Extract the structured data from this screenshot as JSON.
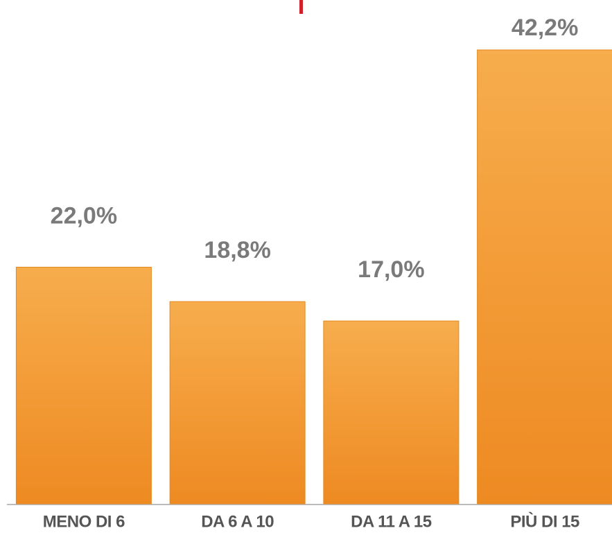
{
  "chart_data": {
    "type": "bar",
    "categories": [
      "MENO DI 6",
      "DA 6 A 10",
      "DA 11 A 15",
      "PIÙ DI 15"
    ],
    "values": [
      22.0,
      18.8,
      17.0,
      42.2
    ],
    "value_labels": [
      "22,0%",
      "18,8%",
      "17,0%",
      "42,2%"
    ],
    "color": "#f29a35"
  }
}
